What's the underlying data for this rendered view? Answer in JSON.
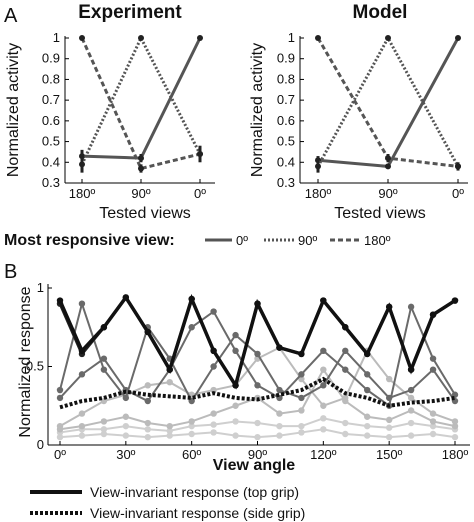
{
  "panel_labels": {
    "a": "A",
    "b": "B"
  },
  "chart_data": [
    {
      "type": "line",
      "title": "Experiment",
      "xlabel": "Tested views",
      "ylabel": "Normalized activity",
      "categories": [
        "180º",
        "90º",
        "0º"
      ],
      "ylim": [
        0.3,
        1.0
      ],
      "yticks": [
        "0.3",
        "0.4",
        "0.5",
        "0.6",
        "0.7",
        "0.8",
        "0.9",
        "1"
      ],
      "series": [
        {
          "name": "0º",
          "values": [
            0.43,
            0.42,
            1.0
          ],
          "err": [
            0.03,
            0.02,
            0.0
          ]
        },
        {
          "name": "90º",
          "values": [
            0.39,
            1.0,
            0.44
          ],
          "err": [
            0.04,
            0.0,
            0.04
          ]
        },
        {
          "name": "180º",
          "values": [
            1.0,
            0.37,
            0.44
          ],
          "err": [
            0.0,
            0.02,
            0.03
          ]
        }
      ]
    },
    {
      "type": "line",
      "title": "Model",
      "xlabel": "Tested views",
      "ylabel": "Normalized activity",
      "categories": [
        "180º",
        "90º",
        "0º"
      ],
      "ylim": [
        0.3,
        1.0
      ],
      "yticks": [
        "0.3",
        "0.4",
        "0.5",
        "0.6",
        "0.7",
        "0.8",
        "0.9",
        "1"
      ],
      "series": [
        {
          "name": "0º",
          "values": [
            0.41,
            0.38,
            1.0
          ],
          "err": [
            0.02,
            0.0,
            0.0
          ]
        },
        {
          "name": "90º",
          "values": [
            0.38,
            1.0,
            0.38
          ],
          "err": [
            0.03,
            0.0,
            0.02
          ]
        },
        {
          "name": "180º",
          "values": [
            1.0,
            0.42,
            0.38
          ],
          "err": [
            0.0,
            0.02,
            0.0
          ]
        }
      ]
    },
    {
      "type": "line",
      "xlabel": "View angle",
      "ylabel": "Normalized response",
      "categories": [
        "0º",
        "30º",
        "60º",
        "90º",
        "120º",
        "150º",
        "180º"
      ],
      "x": [
        0,
        10,
        20,
        30,
        40,
        50,
        60,
        70,
        80,
        90,
        100,
        110,
        120,
        130,
        140,
        150,
        160,
        170,
        180
      ],
      "ylim": [
        0,
        1
      ],
      "yticks": [
        "0",
        "0.5",
        "1"
      ],
      "series": [
        {
          "values": [
            0.9,
            0.58,
            0.75,
            0.94,
            0.72,
            0.48,
            0.93,
            0.6,
            0.38,
            0.9,
            0.62,
            0.58,
            0.92,
            0.75,
            0.58,
            0.88,
            0.48,
            0.83,
            0.92
          ]
        },
        {
          "values": [
            0.3,
            0.45,
            0.55,
            0.35,
            0.28,
            0.48,
            0.75,
            0.85,
            0.6,
            0.38,
            0.3,
            0.45,
            0.6,
            0.48,
            0.35,
            0.25,
            0.88,
            0.55,
            0.32
          ]
        },
        {
          "values": [
            0.35,
            0.9,
            0.48,
            0.3,
            0.75,
            0.55,
            0.28,
            0.5,
            0.7,
            0.58,
            0.35,
            0.3,
            0.38,
            0.6,
            0.45,
            0.3,
            0.35,
            0.48,
            0.28
          ]
        },
        {
          "values": [
            0.12,
            0.2,
            0.28,
            0.32,
            0.38,
            0.4,
            0.32,
            0.35,
            0.38,
            0.55,
            0.62,
            0.42,
            0.25,
            0.3,
            0.6,
            0.42,
            0.3,
            0.2,
            0.15
          ]
        },
        {
          "values": [
            0.1,
            0.12,
            0.15,
            0.18,
            0.14,
            0.12,
            0.15,
            0.2,
            0.25,
            0.3,
            0.2,
            0.22,
            0.48,
            0.28,
            0.18,
            0.16,
            0.22,
            0.15,
            0.12
          ]
        },
        {
          "values": [
            0.08,
            0.1,
            0.1,
            0.12,
            0.1,
            0.09,
            0.12,
            0.13,
            0.15,
            0.14,
            0.12,
            0.12,
            0.17,
            0.14,
            0.12,
            0.11,
            0.14,
            0.12,
            0.1
          ]
        },
        {
          "values": [
            0.05,
            0.06,
            0.07,
            0.06,
            0.05,
            0.06,
            0.07,
            0.08,
            0.06,
            0.05,
            0.06,
            0.08,
            0.1,
            0.07,
            0.06,
            0.05,
            0.06,
            0.07,
            0.05
          ]
        },
        {
          "name": "View-invariant response (top grip)",
          "values": [
            0.92,
            0.6,
            0.75,
            0.94,
            0.72,
            0.48,
            0.93,
            0.6,
            0.38,
            0.9,
            0.62,
            0.58,
            0.92,
            0.75,
            0.58,
            0.88,
            0.48,
            0.83,
            0.92
          ]
        },
        {
          "name": "View-invariant response (side grip)",
          "values": [
            0.24,
            0.28,
            0.3,
            0.34,
            0.32,
            0.31,
            0.3,
            0.33,
            0.3,
            0.29,
            0.32,
            0.35,
            0.42,
            0.33,
            0.3,
            0.25,
            0.27,
            0.28,
            0.3
          ]
        }
      ]
    }
  ],
  "legend_top": {
    "title": "Most responsive view:",
    "items": [
      {
        "label": "0º",
        "style": "solid"
      },
      {
        "label": "90º",
        "style": "dotted"
      },
      {
        "label": "180º",
        "style": "dashed"
      }
    ]
  },
  "legend_bottom": {
    "items": [
      {
        "label": "View-invariant response (top grip)",
        "style": "solid"
      },
      {
        "label": "View-invariant response (side grip)",
        "style": "dotted"
      }
    ]
  },
  "colors": {
    "series_line": "#555555",
    "line_dark": "#222222",
    "mid_gray": "#6a6a6a",
    "light_gray": "#bbbbbb",
    "lighter_gray": "#cfcfcf",
    "axis": "#000000"
  }
}
